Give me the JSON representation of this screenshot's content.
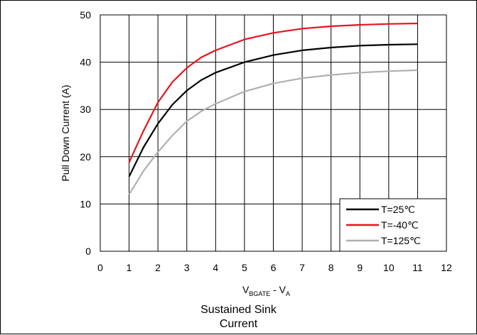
{
  "chart_data": {
    "type": "line",
    "title": "",
    "xlabel_main": "V",
    "xlabel_sub1": "BGATE",
    "xlabel_mid": " - V",
    "xlabel_sub2": "A",
    "ylabel": "Pull Down Current (A)",
    "xlim": [
      0,
      12
    ],
    "ylim": [
      0,
      50
    ],
    "xticks": [
      0,
      1,
      2,
      3,
      4,
      5,
      6,
      7,
      8,
      9,
      10,
      11,
      12
    ],
    "yticks": [
      0,
      10,
      20,
      30,
      40,
      50
    ],
    "grid": true,
    "legend_position": "bottom-right",
    "x": [
      1,
      1.5,
      2,
      2.5,
      3,
      3.5,
      4,
      5,
      6,
      7,
      8,
      9,
      10,
      11
    ],
    "series": [
      {
        "name": "T=25℃",
        "color": "#000000",
        "values": [
          15.8,
          22.0,
          27.0,
          31.0,
          34.0,
          36.2,
          37.8,
          40.0,
          41.5,
          42.5,
          43.1,
          43.5,
          43.7,
          43.8
        ]
      },
      {
        "name": "T=-40℃",
        "color": "#e8141b",
        "values": [
          18.8,
          25.5,
          31.5,
          35.8,
          38.8,
          41.0,
          42.5,
          44.8,
          46.2,
          47.1,
          47.6,
          47.9,
          48.1,
          48.2
        ]
      },
      {
        "name": "T=125℃",
        "color": "#b0b0b0",
        "values": [
          12.0,
          17.0,
          21.0,
          24.5,
          27.5,
          29.6,
          31.2,
          33.8,
          35.5,
          36.6,
          37.3,
          37.8,
          38.1,
          38.3
        ]
      }
    ]
  },
  "caption": {
    "line1": "Sustained Sink",
    "line2": "Current"
  }
}
